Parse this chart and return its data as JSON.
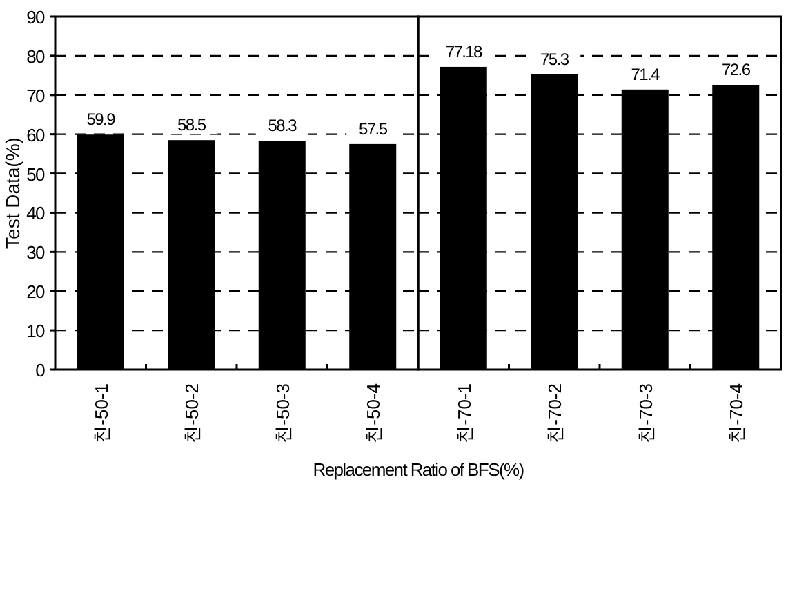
{
  "chart_data": [
    {
      "type": "bar",
      "ylabel": "Test Data(%)",
      "categories": [
        "친-50-1",
        "친-50-2",
        "친-50-3",
        "친-50-4"
      ],
      "values": [
        59.9,
        58.5,
        58.3,
        57.5
      ],
      "value_labels": [
        "59.9",
        "58.5",
        "58.3",
        "57.5"
      ],
      "color": "#000000",
      "ylim": [
        0,
        90
      ],
      "yticks": [
        0,
        10,
        20,
        30,
        40,
        50,
        60,
        70,
        80,
        90
      ],
      "grid": "y"
    },
    {
      "type": "bar",
      "xlabel": "Replacement Ratio of BFS(%)",
      "categories": [
        "친-70-1",
        "친-70-2",
        "친-70-3",
        "친-70-4"
      ],
      "values": [
        77.18,
        75.3,
        71.4,
        72.6
      ],
      "value_labels": [
        "77.18",
        "75.3",
        "71.4",
        "72.6"
      ],
      "color": "#000000",
      "ylim": [
        0,
        90
      ],
      "yticks": [
        0,
        10,
        20,
        30,
        40,
        50,
        60,
        70,
        80,
        90
      ],
      "grid": "y",
      "tick_labels": "x"
    }
  ]
}
